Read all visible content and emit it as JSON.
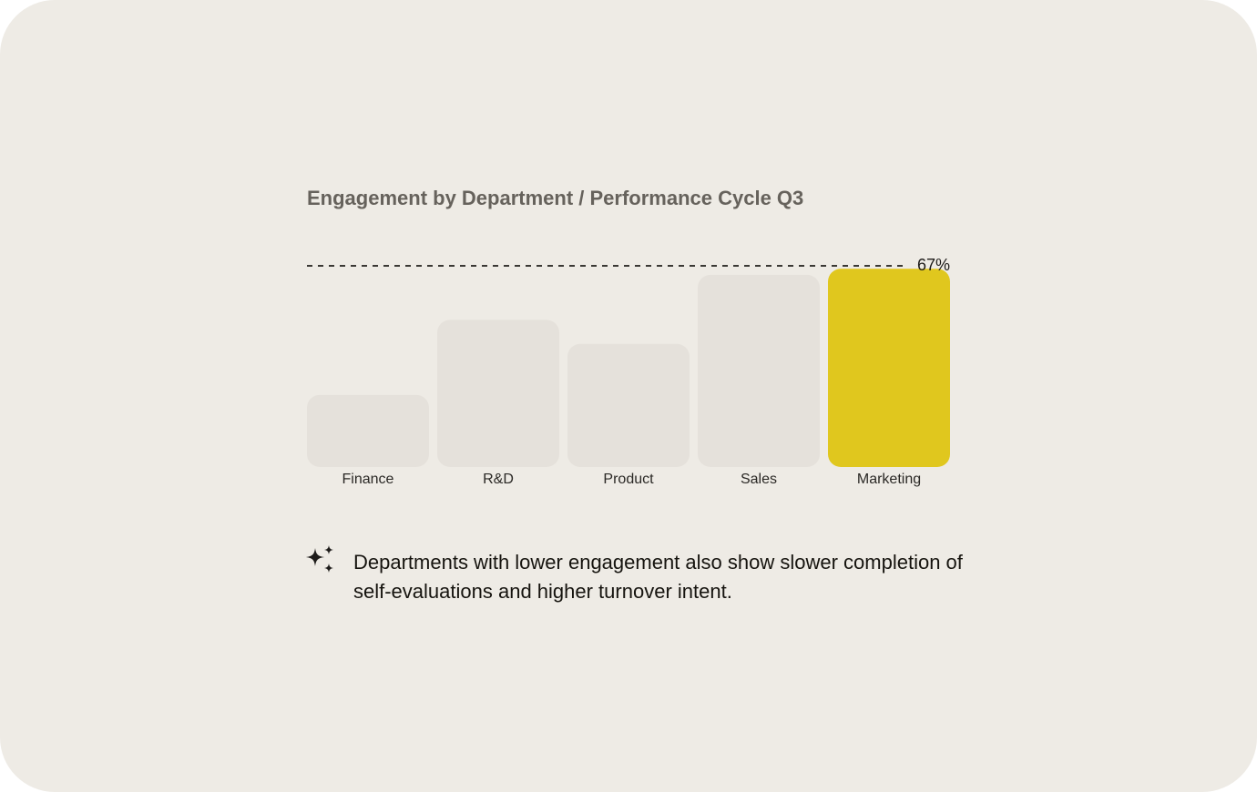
{
  "chart_data": {
    "type": "bar",
    "title": "Engagement by Department / Performance Cycle Q3",
    "categories": [
      "Finance",
      "R&D",
      "Product",
      "Sales",
      "Marketing"
    ],
    "values": [
      24,
      49,
      41,
      64,
      66
    ],
    "ylim": [
      0,
      67
    ],
    "reference_line": {
      "value": 67,
      "label": "67%"
    },
    "highlight_category": "Marketing",
    "colors": {
      "bar": "#e5e1db",
      "highlight": "#e0c71e",
      "reference": "#3a3834"
    },
    "grid": false,
    "legend": "none"
  },
  "insight": {
    "icon": "sparkle-icon",
    "text": "Departments with lower engagement also show slower completion of self-evaluations and higher turnover intent."
  }
}
